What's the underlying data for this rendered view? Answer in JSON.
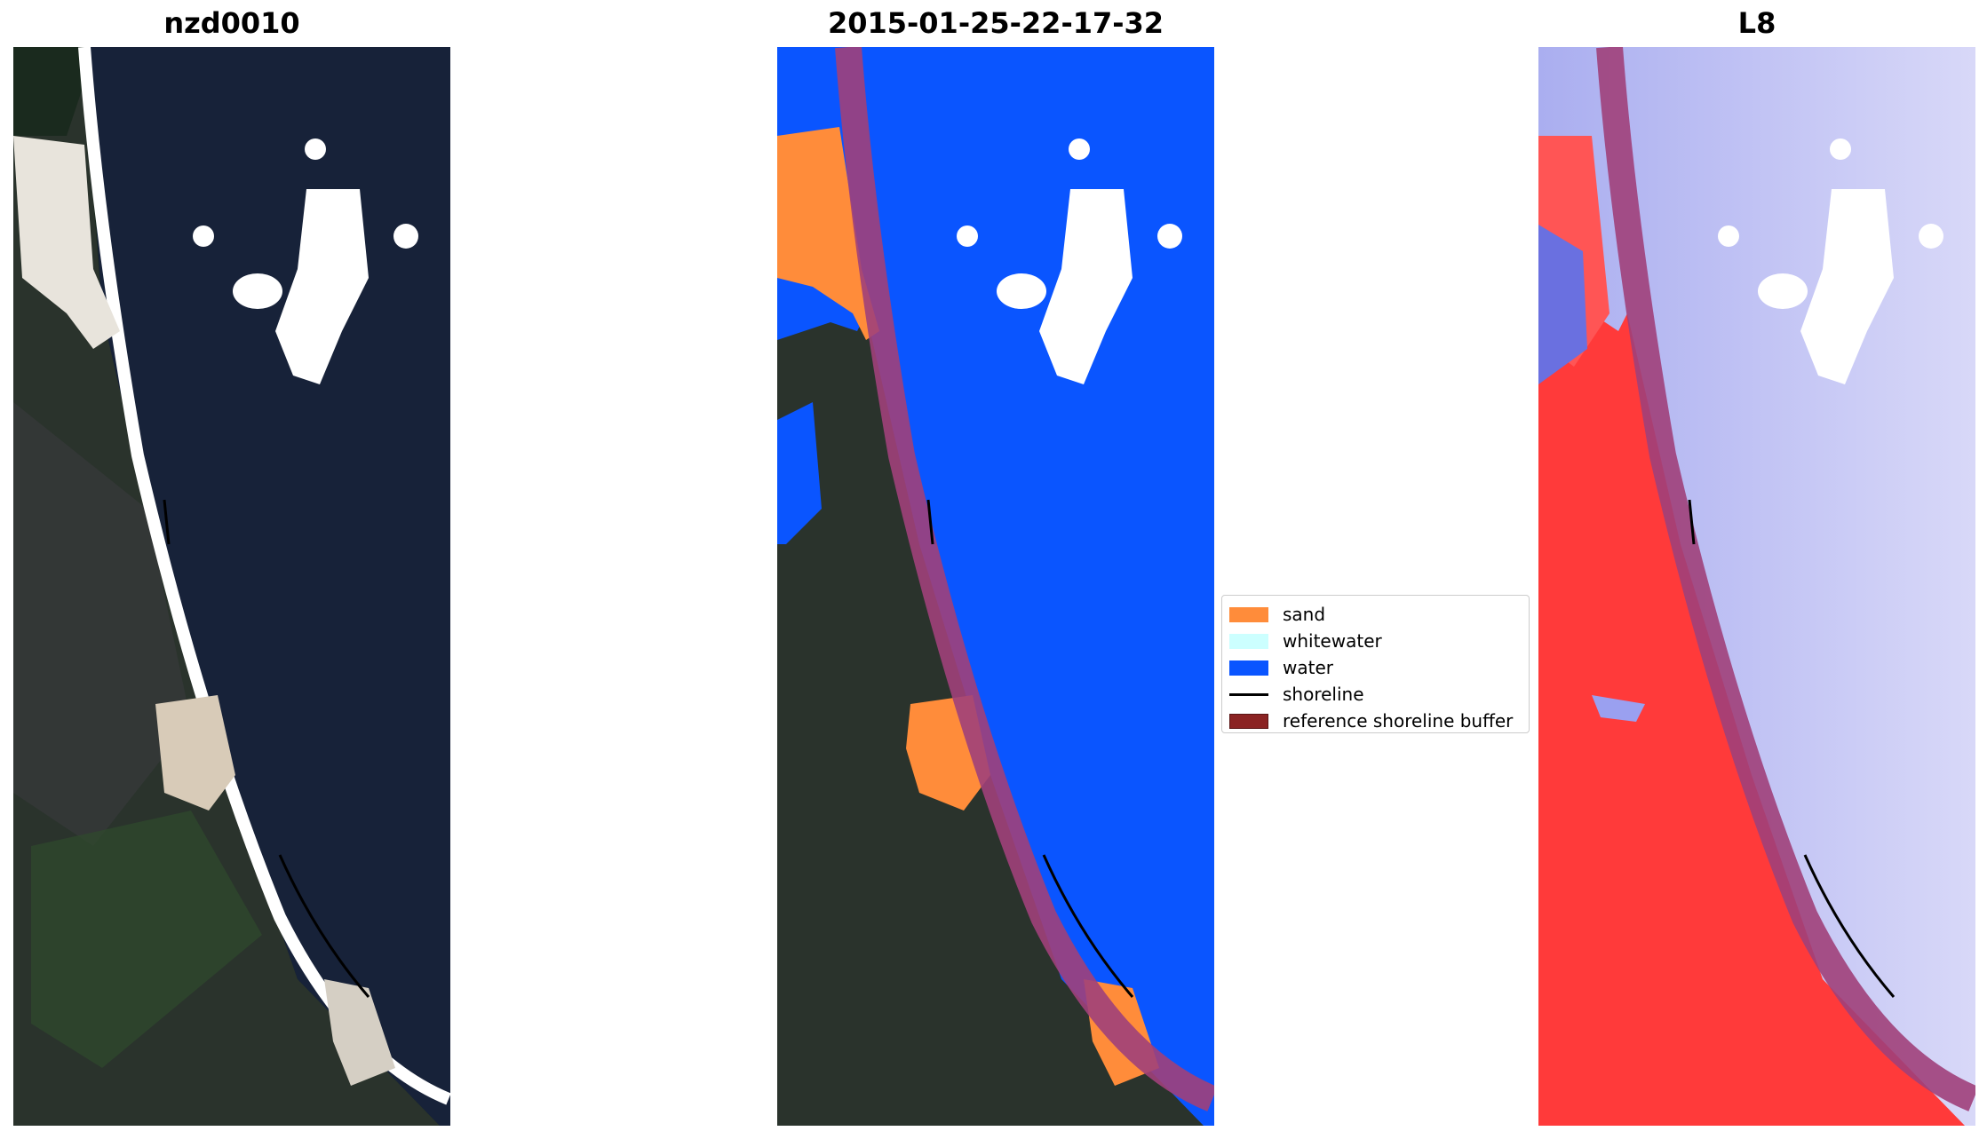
{
  "panels": [
    {
      "title": "nzd0010",
      "kind": "rgb-satellite"
    },
    {
      "title": "2015-01-25-22-17-32",
      "kind": "classified"
    },
    {
      "title": "L8",
      "kind": "mndwi"
    }
  ],
  "legend": {
    "items": [
      {
        "label": "sand",
        "color": "#ff8c3a",
        "kind": "patch"
      },
      {
        "label": "whitewater",
        "color": "#ccffff",
        "kind": "patch"
      },
      {
        "label": "water",
        "color": "#0a55ff",
        "kind": "patch"
      },
      {
        "label": "shoreline",
        "color": "#000000",
        "kind": "line"
      },
      {
        "label": "reference shoreline buffer",
        "color": "#8b2323",
        "kind": "patch"
      }
    ]
  },
  "colors": {
    "land": "#2a332c",
    "ocean": "#172239",
    "cloud": "#ffffff",
    "buffer": "#a0407a",
    "mndwi_land": "#ff3a3a",
    "mndwi_water": "#c8caf5"
  }
}
